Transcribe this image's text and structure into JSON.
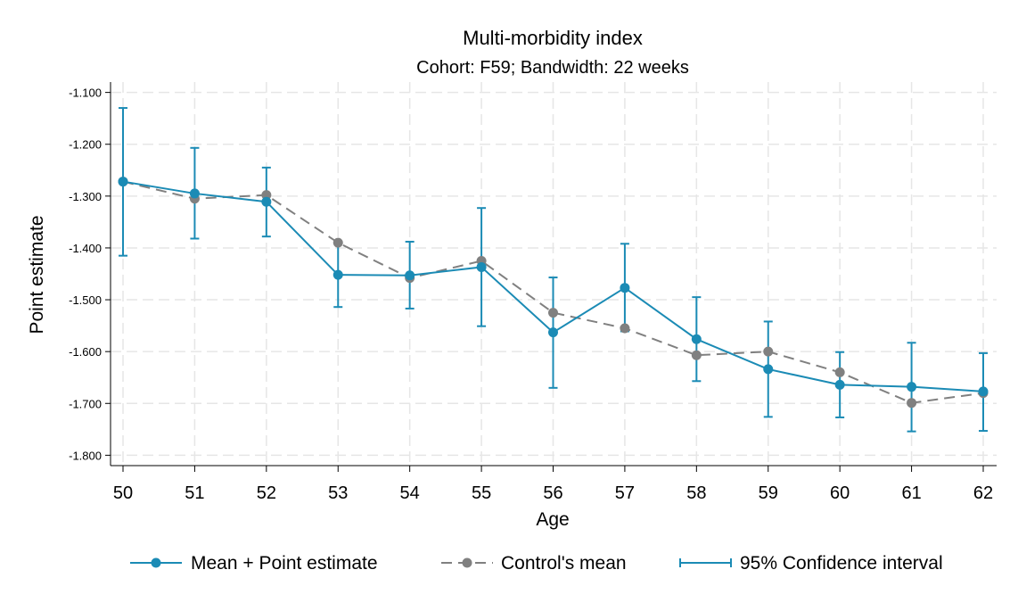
{
  "chart_data": {
    "type": "line",
    "title": "Multi-morbidity index",
    "subtitle": "Cohort: F59; Bandwidth: 22 weeks",
    "xlabel": "Age",
    "ylabel": "Point estimate",
    "x": [
      50,
      51,
      52,
      53,
      54,
      55,
      56,
      57,
      58,
      59,
      60,
      61,
      62
    ],
    "x_tick_labels": [
      "50",
      "51",
      "52",
      "53",
      "54",
      "55",
      "56",
      "57",
      "58",
      "59",
      "60",
      "61",
      "62"
    ],
    "y_ticks": [
      -1.1,
      -1.2,
      -1.3,
      -1.4,
      -1.5,
      -1.6,
      -1.7,
      -1.8
    ],
    "y_tick_labels": [
      "-1.100",
      "-1.200",
      "-1.300",
      "-1.400",
      "-1.500",
      "-1.600",
      "-1.700",
      "-1.800"
    ],
    "ylim": [
      -1.82,
      -1.08
    ],
    "grid": true,
    "legend_position": "bottom",
    "series": [
      {
        "name": "Mean + Point estimate",
        "style": "solid-line-circle",
        "color": "#1b8bb5",
        "values": [
          -1.272,
          -1.295,
          -1.311,
          -1.452,
          -1.453,
          -1.437,
          -1.563,
          -1.477,
          -1.576,
          -1.634,
          -1.664,
          -1.668,
          -1.677
        ]
      },
      {
        "name": "Control's mean",
        "style": "dashed-line-circle",
        "color": "#808080",
        "values": [
          -1.272,
          -1.305,
          -1.298,
          -1.39,
          -1.458,
          -1.425,
          -1.525,
          -1.555,
          -1.607,
          -1.6,
          -1.64,
          -1.699,
          -1.68
        ]
      },
      {
        "name": "95% Confidence interval",
        "style": "error-bar",
        "color": "#1b8bb5",
        "lower": [
          -1.415,
          -1.382,
          -1.378,
          -1.514,
          -1.517,
          -1.551,
          -1.67,
          -1.561,
          -1.657,
          -1.726,
          -1.727,
          -1.754,
          -1.753
        ],
        "upper": [
          -1.13,
          -1.207,
          -1.245,
          -1.39,
          -1.388,
          -1.323,
          -1.457,
          -1.392,
          -1.495,
          -1.542,
          -1.601,
          -1.583,
          -1.603
        ]
      }
    ]
  }
}
